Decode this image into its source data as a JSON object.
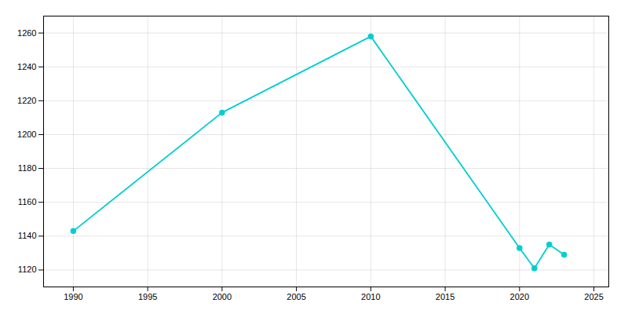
{
  "chart_data": {
    "type": "line",
    "x": [
      1990,
      2000,
      2010,
      2020,
      2021,
      2022,
      2023
    ],
    "values": [
      1143,
      1213,
      1258,
      1133,
      1121,
      1135,
      1129
    ],
    "color": "#00CED1",
    "marker": "circle",
    "xlim": [
      1988,
      2026
    ],
    "xticks": [
      1990,
      1995,
      2000,
      2005,
      2010,
      2015,
      2020,
      2025
    ],
    "ylim": [
      1110,
      1270
    ],
    "yticks": [
      1120,
      1140,
      1160,
      1180,
      1200,
      1220,
      1240,
      1260
    ],
    "grid": true
  }
}
